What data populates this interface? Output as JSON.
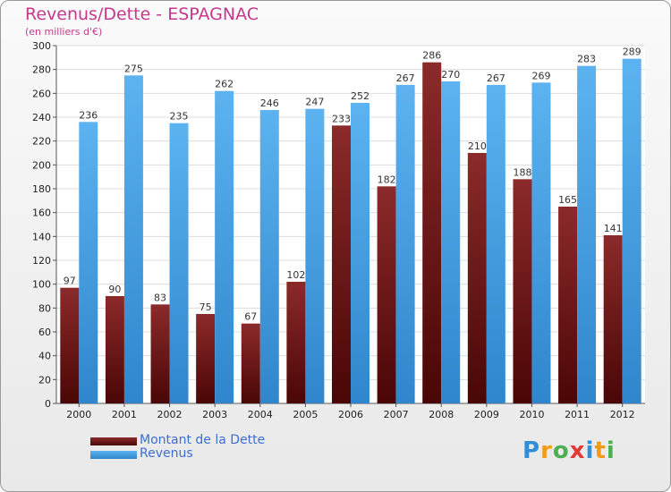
{
  "chart_data": {
    "type": "bar",
    "title": "Revenus/Dette - ESPAGNAC",
    "subtitle": "(en milliers d'€)",
    "categories": [
      "2000",
      "2001",
      "2002",
      "2003",
      "2004",
      "2005",
      "2006",
      "2007",
      "2008",
      "2009",
      "2010",
      "2011",
      "2012"
    ],
    "series": [
      {
        "name": "Montant de la Dette",
        "color": "#7a1414",
        "values": [
          97,
          90,
          83,
          75,
          67,
          102,
          233,
          182,
          286,
          210,
          188,
          165,
          141
        ]
      },
      {
        "name": "Revenus",
        "color": "#4aa3e8",
        "values": [
          236,
          275,
          235,
          262,
          246,
          247,
          252,
          267,
          270,
          267,
          269,
          283,
          289
        ]
      }
    ],
    "ylim": [
      0,
      300
    ],
    "ytick_step": 20,
    "grid": true,
    "legend": "bottom-left"
  },
  "logo": {
    "text": "Proxiti",
    "letters": [
      {
        "ch": "P",
        "color": "#2f8fd8"
      },
      {
        "ch": "r",
        "color": "#f39c12"
      },
      {
        "ch": "o",
        "color": "#4caf50"
      },
      {
        "ch": "x",
        "color": "#e53935"
      },
      {
        "ch": "i",
        "color": "#2f8fd8"
      },
      {
        "ch": "t",
        "color": "#f39c12"
      },
      {
        "ch": "i",
        "color": "#4caf50"
      }
    ]
  }
}
